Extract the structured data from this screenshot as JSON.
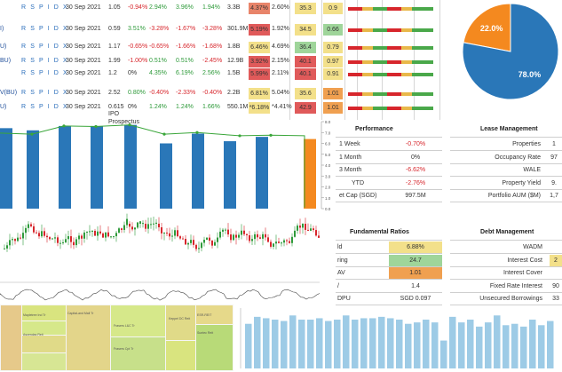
{
  "table": {
    "rows": [
      {
        "tkr": "",
        "rspidx": "R S P I D X",
        "date": "30 Sep 2021",
        "price": "1.05",
        "c1": "-0.94%",
        "c2": "2.94%",
        "c3": "3.96%",
        "c4": "1.94%",
        "mcap": "3.3B",
        "dy": "4.37%",
        "yld": "2.60%",
        "score": "35.3",
        "pb": "0.9",
        "dycolor": "#e8846a",
        "scorecolor": "#f3e08a",
        "pbcolor": "#f3e08a"
      },
      {
        "tkr": "I)",
        "rspidx": "R S P I D X",
        "date": "30 Sep 2021",
        "price": "0.59",
        "c1": "3.51%",
        "c2": "-3.28%",
        "c3": "-1.67%",
        "c4": "-3.28%",
        "mcap": "301.9M",
        "dy": "5.19%",
        "yld": "1.92%",
        "score": "34.5",
        "pb": "0.66",
        "dycolor": "#e05a5a",
        "scorecolor": "#f3e08a",
        "pbcolor": "#9fd59a"
      },
      {
        "tkr": "U)",
        "rspidx": "R S P I D X",
        "date": "30 Sep 2021",
        "price": "1.17",
        "c1": "-0.65%",
        "c2": "-0.65%",
        "c3": "-1.66%",
        "c4": "-1.68%",
        "mcap": "1.8B",
        "dy": "6.46%",
        "yld": "4.69%",
        "score": "36.4",
        "pb": "0.79",
        "dycolor": "#f3e08a",
        "scorecolor": "#9fd59a",
        "pbcolor": "#f3e08a"
      },
      {
        "tkr": "BU)",
        "rspidx": "R S P I D X",
        "date": "30 Sep 2021",
        "price": "1.99",
        "c1": "-1.00%",
        "c2": "0.51%",
        "c3": "0.51%",
        "c4": "-2.45%",
        "mcap": "12.9B",
        "dy": "3.92%",
        "yld": "2.15%",
        "score": "40.1",
        "pb": "0.97",
        "dycolor": "#e05a5a",
        "scorecolor": "#e05a5a",
        "pbcolor": "#f3e08a"
      },
      {
        "tkr": "",
        "rspidx": "R S P I D X",
        "date": "30 Sep 2021",
        "price": "1.2",
        "c1": "0%",
        "c2": "4.35%",
        "c3": "6.19%",
        "c4": "2.56%",
        "mcap": "1.5B",
        "dy": "5.99%",
        "yld": "2.11%",
        "score": "40.1",
        "pb": "0.91",
        "dycolor": "#e05a5a",
        "scorecolor": "#e05a5a",
        "pbcolor": "#f3e08a"
      },
      {
        "tkr": "V(BU)",
        "rspidx": "R S P I D X",
        "date": "30 Sep 2021",
        "price": "2.52",
        "c1": "0.80%",
        "c2": "-0.40%",
        "c3": "-2.33%",
        "c4": "-0.40%",
        "mcap": "2.2B",
        "dy": "6.81%",
        "yld": "5.04%",
        "score": "35.6",
        "pb": "1.01",
        "dycolor": "#f3e08a",
        "scorecolor": "#f3e08a",
        "pbcolor": "#f0a050"
      },
      {
        "tkr": "U)",
        "rspidx": "R S P I D X",
        "date": "30 Sep 2021",
        "price": "0.615",
        "c1": "0%",
        "c2": "1.24%",
        "c3": "1.24%",
        "c4": "1.66%",
        "mcap": "550.1M",
        "dy": "*6.18%",
        "yld": "*4.41%",
        "score": "42.9",
        "pb": "1.01",
        "dycolor": "#f3e08a",
        "scorecolor": "#e05a5a",
        "pbcolor": "#f0a050",
        "extra": "IPO Prospectus"
      }
    ]
  },
  "pie": {
    "slices": [
      {
        "label": "22.0%",
        "value": 22.0,
        "color": "#f4891f"
      },
      {
        "label": "78.0%",
        "value": 78.0,
        "color": "#2a77b8"
      }
    ]
  },
  "chart_data": {
    "type": "bar",
    "values": [
      7.4,
      7.2,
      7.6,
      7.6,
      7.7,
      7.8,
      6.0,
      6.9,
      6.2,
      6.6,
      6.6,
      0.0,
      6.4
    ],
    "line": [
      6.95,
      6.85,
      7.6,
      7.55,
      7.7,
      7.8,
      7.0,
      7.0,
      6.9,
      6.7,
      6.75,
      0.0,
      6.7
    ],
    "highlight_index": 12,
    "ylim": [
      0,
      8
    ],
    "yticks": [
      "0.0",
      "1.0",
      "2.0",
      "3.0",
      "4.0",
      "5.0",
      "6.0",
      "7.0",
      "8.0"
    ]
  },
  "performance": {
    "title": "Performance",
    "rows": [
      {
        "label": "1 Week",
        "value": "-0.70%",
        "cls": "neg"
      },
      {
        "label": "1 Month",
        "value": "0%",
        "cls": ""
      },
      {
        "label": "3 Month",
        "value": "-6.62%",
        "cls": "neg"
      },
      {
        "label": "YTD",
        "value": "-2.76%",
        "cls": "neg"
      },
      {
        "label": "et Cap (SGD)",
        "value": "997.5M",
        "cls": ""
      }
    ]
  },
  "lease": {
    "title": "Lease Management",
    "rows": [
      {
        "label": "Properties",
        "value": "1"
      },
      {
        "label": "Occupancy Rate",
        "value": "97"
      },
      {
        "label": "WALE",
        "value": ""
      },
      {
        "label": "Property Yield",
        "value": "9."
      },
      {
        "label": "Portfolio AUM ($M)",
        "value": "1,7"
      }
    ]
  },
  "fundamental": {
    "title": "Fundamental Ratios",
    "rows": [
      {
        "label": "ld",
        "value": "6.88%",
        "bg": "#f3e08a"
      },
      {
        "label": "ring",
        "value": "24.7",
        "bg": "#9fd59a"
      },
      {
        "label": "AV",
        "value": "1.01",
        "bg": "#f0a050"
      },
      {
        "label": "/",
        "value": "1.4",
        "bg": ""
      },
      {
        "label": "DPU",
        "value": "SGD 0.097",
        "bg": ""
      }
    ]
  },
  "debt": {
    "title": "Debt Management",
    "rows": [
      {
        "label": "WADM",
        "value": ""
      },
      {
        "label": "Interest Cost",
        "value": "2"
      },
      {
        "label": "Interest Cover",
        "value": ""
      },
      {
        "label": "Fixed Rate Interest",
        "value": "90"
      },
      {
        "label": "Unsecured Borrowings",
        "value": "33"
      }
    ]
  },
  "bottom_chart": {
    "values": [
      3.2,
      3.7,
      3.6,
      3.5,
      3.4,
      3.8,
      3.5,
      3.5,
      3.6,
      3.4,
      3.5,
      3.8,
      3.5,
      3.6,
      3.6,
      3.7,
      3.6,
      3.5,
      3.2,
      3.3,
      3.5,
      3.3,
      2.0,
      3.7,
      3.3,
      3.5,
      3.0,
      3.3,
      3.8,
      3.1,
      3.2,
      3.0,
      3.5,
      3.1,
      3.4
    ]
  },
  "treemap": {
    "cells": [
      {
        "label": "Frasers L&C Tr",
        "color": "#d6e88a"
      },
      {
        "label": "CapitaLand Mall Tr",
        "color": "#e3d58a"
      },
      {
        "label": "Ascendas Reit",
        "color": "#e6c98a"
      },
      {
        "label": "Mapletree Ind Tr",
        "color": "#d9e47f"
      },
      {
        "label": "Keppel DC Reit",
        "color": "#e0da88"
      },
      {
        "label": "ESR-REIT",
        "color": "#c7e08a"
      },
      {
        "label": "Suntec Reit",
        "color": "#b8da78"
      },
      {
        "label": "Frasers Cpt Tr",
        "color": "#d7e694"
      }
    ]
  }
}
